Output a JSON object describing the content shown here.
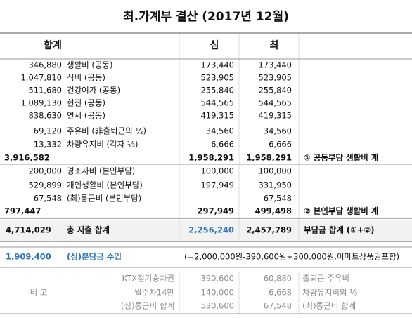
{
  "title": "최.가계부 결산 (2017년 12월)",
  "header": {
    "total": "합계",
    "sim": "심",
    "choi": "최"
  },
  "shared_items": [
    {
      "total": "346,880",
      "item": "생활비 (공동)",
      "sim": "173,440",
      "choi": "173,440"
    },
    {
      "total": "1,047,810",
      "item": "식비 (공동)",
      "sim": "523,905",
      "choi": "523,905"
    },
    {
      "total": "511,680",
      "item": "건강여가 (공동)",
      "sim": "255,840",
      "choi": "255,840"
    },
    {
      "total": "1,089,130",
      "item": "현진 (공동)",
      "sim": "544,565",
      "choi": "544,565"
    },
    {
      "total": "838,630",
      "item": "연서 (공동)",
      "sim": "419,315",
      "choi": "419,315"
    },
    {
      "total": "69,120",
      "item": "주유비 (非출퇴근의 ½)",
      "sim": "34,560",
      "choi": "34,560"
    },
    {
      "total": "13,332",
      "item": "차량유지비 (각자 ⅓)",
      "sim": "6,666",
      "choi": "6,666"
    }
  ],
  "shared_subtotal": {
    "total": "3,916,582",
    "sim": "1,958,291",
    "choi": "1,958,291",
    "note": "① 공동부담 생활비 계"
  },
  "personal_items": [
    {
      "total": "200,000",
      "item": "경조사비 (본인부담)",
      "sim": "100,000",
      "choi": "100,000"
    },
    {
      "total": "529,899",
      "item": "개인생활비 (본인부담)",
      "sim": "197,949",
      "choi": "331,950"
    },
    {
      "total": "67,548",
      "item": "(최)통근비 (본인부담)",
      "choi": "67,548"
    }
  ],
  "personal_subtotal": {
    "total": "797,447",
    "sim": "297,949",
    "choi": "499,498",
    "note": "② 본인부담 생활비 계"
  },
  "grand_total": {
    "total": "4,714,029",
    "item": "총 지출 합계",
    "sim": "2,256,240",
    "choi": "2,457,789",
    "note": "부담금 합계 (①+②)"
  },
  "income": {
    "total": "1,909,400",
    "item": "(심)분담금 수입",
    "note": "(=2,000,000원-390,600원+300,000원.이마트상품권포함)"
  },
  "remarks": {
    "label": "비 고",
    "rows": [
      {
        "item": "KTX정기승차권",
        "sim": "390,600",
        "choi": "60,880",
        "note": "출퇴근 주유비"
      },
      {
        "item": "월주차14만",
        "sim": "140,000",
        "choi": "6,668",
        "note": "차량유지비의 ⅓"
      },
      {
        "item": "(심)통근비 합계",
        "sim": "530,600",
        "choi": "67,548",
        "note": "(최)통근비 합계"
      }
    ]
  }
}
